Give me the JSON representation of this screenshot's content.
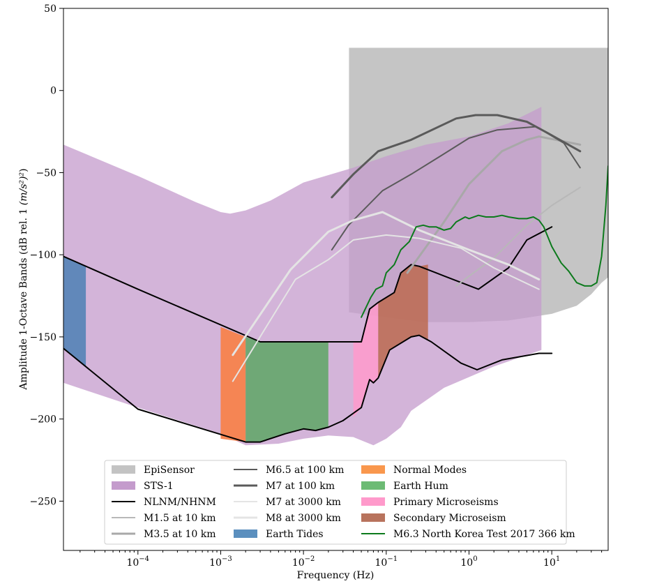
{
  "chart_data": {
    "type": "line",
    "xlabel": "Frequency (Hz)",
    "ylabel_prefix": "Amplitude 1-Octave Bands (dB rel. 1 ",
    "ylabel_unit": "(m/s²)²",
    "ylabel_suffix": ")",
    "xscale": "log",
    "xlim": [
      1.26e-05,
      48
    ],
    "ylim": [
      -280,
      50
    ],
    "x_tick_labels": [
      {
        "value": 0.0001,
        "base": "10",
        "exp": "−4"
      },
      {
        "value": 0.001,
        "base": "10",
        "exp": "−3"
      },
      {
        "value": 0.01,
        "base": "10",
        "exp": "−2"
      },
      {
        "value": 0.1,
        "base": "10",
        "exp": "−1"
      },
      {
        "value": 1,
        "base": "10",
        "exp": "0"
      },
      {
        "value": 10,
        "base": "10",
        "exp": "1"
      }
    ],
    "y_ticks": [
      50,
      0,
      -50,
      -100,
      -150,
      -200,
      -250
    ],
    "y_tick_labels": [
      "50",
      "0",
      "−50",
      "−100",
      "−150",
      "−200",
      "−250"
    ],
    "legend_position": "lower-center",
    "bands": [
      {
        "name": "Earth Tides",
        "color": "#5b86b8",
        "opacity": 0.95,
        "x0": 1.26e-05,
        "x1": 2.35e-05,
        "ybottom": [
          [
            1.26e-05,
            -157
          ],
          [
            2.35e-05,
            -168
          ]
        ],
        "ytop": [
          [
            1.26e-05,
            -101
          ],
          [
            2.35e-05,
            -107
          ]
        ]
      },
      {
        "name": "Normal Modes",
        "color": "#f7834d",
        "opacity": 0.95,
        "x0": 0.001,
        "x1": 0.002,
        "ybottom": [
          [
            0.001,
            -212
          ],
          [
            0.002,
            -214
          ]
        ],
        "ytop": [
          [
            0.001,
            -144
          ],
          [
            0.002,
            -150
          ]
        ]
      },
      {
        "name": "Earth Hum",
        "color": "#56a55c",
        "opacity": 0.8,
        "x0": 0.002,
        "x1": 0.02,
        "ybottom": [
          [
            0.002,
            -214
          ],
          [
            0.003,
            -214
          ],
          [
            0.006,
            -209
          ],
          [
            0.01,
            -206
          ],
          [
            0.014,
            -207
          ],
          [
            0.02,
            -205
          ]
        ],
        "ytop": [
          [
            0.002,
            -150
          ],
          [
            0.003,
            -153
          ],
          [
            0.02,
            -153
          ]
        ]
      },
      {
        "name": "Primary Microseisms",
        "color": "#ff9acb",
        "opacity": 0.85,
        "x0": 0.04,
        "x1": 0.08,
        "ybottom": [
          [
            0.04,
            -199
          ],
          [
            0.05,
            -193
          ],
          [
            0.063,
            -176
          ],
          [
            0.07,
            -178
          ],
          [
            0.08,
            -175
          ]
        ],
        "ytop": [
          [
            0.04,
            -153
          ],
          [
            0.05,
            -153
          ],
          [
            0.063,
            -133
          ],
          [
            0.08,
            -129
          ]
        ]
      },
      {
        "name": "Secondary Microseism",
        "color": "#bc6e57",
        "opacity": 0.9,
        "x0": 0.08,
        "x1": 0.32,
        "ybottom": [
          [
            0.08,
            -175
          ],
          [
            0.11,
            -158
          ],
          [
            0.2,
            -150
          ],
          [
            0.25,
            -149
          ],
          [
            0.32,
            -152
          ]
        ],
        "ytop": [
          [
            0.08,
            -129
          ],
          [
            0.125,
            -123
          ],
          [
            0.15,
            -111
          ],
          [
            0.2,
            -106
          ],
          [
            0.25,
            -107
          ],
          [
            0.32,
            -106
          ]
        ]
      }
    ],
    "series": [
      {
        "name": "EpiSensor",
        "kind": "fill",
        "color": "#bfbfbf",
        "opacity": 0.9,
        "top": [
          [
            0.0355,
            26
          ],
          [
            50,
            26
          ]
        ],
        "bottom": [
          [
            0.0355,
            -135
          ],
          [
            0.1,
            -138
          ],
          [
            0.3,
            -141
          ],
          [
            1,
            -141
          ],
          [
            3,
            -140
          ],
          [
            10,
            -136
          ],
          [
            20,
            -131
          ],
          [
            30,
            -124
          ],
          [
            40,
            -117
          ],
          [
            50,
            -113
          ]
        ]
      },
      {
        "name": "STS-1",
        "kind": "fill",
        "color": "#c49bcc",
        "opacity": 0.75,
        "top": [
          [
            1.26e-05,
            -33
          ],
          [
            0.0001,
            -52
          ],
          [
            0.0005,
            -68
          ],
          [
            0.001,
            -74
          ],
          [
            0.0013,
            -75
          ],
          [
            0.002,
            -73
          ],
          [
            0.004,
            -67
          ],
          [
            0.01,
            -56
          ],
          [
            0.04,
            -47
          ],
          [
            0.1,
            -40
          ],
          [
            0.3,
            -33
          ],
          [
            1,
            -28
          ],
          [
            3,
            -20
          ],
          [
            7.5,
            -10
          ]
        ],
        "bottom": [
          [
            7.5,
            -158
          ],
          [
            2,
            -168
          ],
          [
            0.5,
            -181
          ],
          [
            0.2,
            -195
          ],
          [
            0.15,
            -205
          ],
          [
            0.1,
            -212
          ],
          [
            0.07,
            -216
          ],
          [
            0.04,
            -211
          ],
          [
            0.02,
            -210
          ],
          [
            0.01,
            -212
          ],
          [
            0.005,
            -215
          ],
          [
            0.002,
            -216
          ],
          [
            0.001,
            -209
          ],
          [
            0.0001,
            -193
          ],
          [
            1.26e-05,
            -178
          ]
        ]
      },
      {
        "name": "NLNM/NHNM",
        "kind": "line",
        "color": "#000000",
        "width": 2,
        "lines": [
          [
            [
              1.26e-05,
              -101
            ],
            [
              0.0001,
              -121
            ],
            [
              0.003,
              -153
            ],
            [
              0.04,
              -153
            ],
            [
              0.05,
              -153
            ],
            [
              0.063,
              -133
            ],
            [
              0.08,
              -129
            ],
            [
              0.125,
              -123
            ],
            [
              0.15,
              -111
            ],
            [
              0.2,
              -106
            ],
            [
              0.25,
              -107
            ],
            [
              0.4,
              -111
            ],
            [
              1.3,
              -121
            ],
            [
              3,
              -108
            ],
            [
              5,
              -91
            ],
            [
              10,
              -83
            ]
          ],
          [
            [
              1.26e-05,
              -157
            ],
            [
              0.0001,
              -194
            ],
            [
              0.002,
              -214
            ],
            [
              0.003,
              -214
            ],
            [
              0.006,
              -209
            ],
            [
              0.01,
              -206
            ],
            [
              0.014,
              -207
            ],
            [
              0.02,
              -205
            ],
            [
              0.03,
              -201
            ],
            [
              0.05,
              -193
            ],
            [
              0.063,
              -176
            ],
            [
              0.07,
              -178
            ],
            [
              0.08,
              -175
            ],
            [
              0.11,
              -158
            ],
            [
              0.2,
              -150
            ],
            [
              0.25,
              -149
            ],
            [
              0.35,
              -153
            ],
            [
              0.8,
              -166
            ],
            [
              1.25,
              -170
            ],
            [
              2.5,
              -164
            ],
            [
              7,
              -160
            ],
            [
              10,
              -160
            ]
          ]
        ]
      },
      {
        "name": "M1.5 at 10 km",
        "kind": "line",
        "color": "#b8b8b8",
        "width": 2,
        "lines": [
          [
            [
              0.7,
              -119
            ],
            [
              1,
              -113
            ],
            [
              2,
              -102
            ],
            [
              5,
              -82
            ],
            [
              10,
              -70
            ],
            [
              22,
              -59
            ]
          ]
        ]
      },
      {
        "name": "M3.5 at 10 km",
        "kind": "line",
        "color": "#a8a8a8",
        "width": 3,
        "lines": [
          [
            [
              0.18,
              -111
            ],
            [
              0.5,
              -80
            ],
            [
              1,
              -57
            ],
            [
              2.5,
              -37
            ],
            [
              5,
              -30
            ],
            [
              7,
              -28
            ],
            [
              14,
              -31
            ],
            [
              22,
              -33
            ]
          ]
        ]
      },
      {
        "name": "M6.5 at 100 km",
        "kind": "line",
        "color": "#5a5a5a",
        "width": 2,
        "lines": [
          [
            [
              0.022,
              -97
            ],
            [
              0.035,
              -82
            ],
            [
              0.09,
              -61
            ],
            [
              0.2,
              -51
            ],
            [
              0.45,
              -40
            ],
            [
              1,
              -29
            ],
            [
              2.2,
              -24
            ],
            [
              6.5,
              -22
            ],
            [
              14,
              -32
            ],
            [
              22,
              -47
            ]
          ]
        ]
      },
      {
        "name": "M7 at 100 km",
        "kind": "line",
        "color": "#5a5a5a",
        "width": 3,
        "lines": [
          [
            [
              0.022,
              -65
            ],
            [
              0.04,
              -51
            ],
            [
              0.08,
              -37
            ],
            [
              0.2,
              -30
            ],
            [
              0.7,
              -17
            ],
            [
              1.2,
              -15
            ],
            [
              2.2,
              -15
            ],
            [
              5,
              -19
            ],
            [
              9,
              -26
            ],
            [
              22,
              -37
            ]
          ]
        ]
      },
      {
        "name": "M7 at 3000 km",
        "kind": "line",
        "color": "#e4e4e4",
        "width": 2,
        "lines": [
          [
            [
              0.0014,
              -177
            ],
            [
              0.008,
              -115
            ],
            [
              0.02,
              -103
            ],
            [
              0.04,
              -91
            ],
            [
              0.1,
              -88
            ],
            [
              0.25,
              -90
            ],
            [
              0.8,
              -96
            ],
            [
              2,
              -108
            ],
            [
              7,
              -121
            ]
          ]
        ]
      },
      {
        "name": "M8 at 3000 km",
        "kind": "line",
        "color": "#e4e4e4",
        "width": 3,
        "lines": [
          [
            [
              0.0014,
              -161
            ],
            [
              0.007,
              -109
            ],
            [
              0.02,
              -86
            ],
            [
              0.04,
              -79
            ],
            [
              0.09,
              -74
            ],
            [
              0.25,
              -85
            ],
            [
              1,
              -97
            ],
            [
              3,
              -106
            ],
            [
              7,
              -115
            ]
          ]
        ]
      },
      {
        "name": "M6.3 North Korea Test 2017 366 km",
        "kind": "line",
        "color": "#0c7a1c",
        "width": 2,
        "lines": [
          [
            [
              0.05,
              -138
            ],
            [
              0.065,
              -126
            ],
            [
              0.075,
              -121
            ],
            [
              0.09,
              -119
            ],
            [
              0.1,
              -111
            ],
            [
              0.125,
              -106
            ],
            [
              0.15,
              -97
            ],
            [
              0.19,
              -92
            ],
            [
              0.23,
              -83
            ],
            [
              0.28,
              -82
            ],
            [
              0.33,
              -83
            ],
            [
              0.4,
              -83
            ],
            [
              0.5,
              -85
            ],
            [
              0.6,
              -84
            ],
            [
              0.7,
              -80
            ],
            [
              0.9,
              -77
            ],
            [
              1,
              -78
            ],
            [
              1.3,
              -76
            ],
            [
              1.6,
              -77
            ],
            [
              2,
              -77
            ],
            [
              2.5,
              -76
            ],
            [
              3,
              -77
            ],
            [
              4,
              -78
            ],
            [
              5,
              -78
            ],
            [
              6,
              -77
            ],
            [
              7,
              -79
            ],
            [
              8,
              -83
            ],
            [
              10,
              -95
            ],
            [
              13,
              -105
            ],
            [
              16,
              -110
            ],
            [
              20,
              -117
            ],
            [
              25,
              -119
            ],
            [
              30,
              -119
            ],
            [
              35,
              -117
            ],
            [
              40,
              -101
            ],
            [
              45,
              -70
            ],
            [
              48,
              -46
            ]
          ]
        ]
      }
    ],
    "legend": [
      {
        "label": "EpiSensor",
        "kind": "patch",
        "color": "#c3c3c3"
      },
      {
        "label": "STS-1",
        "kind": "patch",
        "color": "#c49bcc"
      },
      {
        "label": "NLNM/NHNM",
        "kind": "line",
        "color": "#000000",
        "width": 2
      },
      {
        "label": "M1.5 at 10 km",
        "kind": "line",
        "color": "#b8b8b8",
        "width": 2
      },
      {
        "label": "M3.5 at 10 km",
        "kind": "line",
        "color": "#a8a8a8",
        "width": 3
      },
      {
        "label": "M6.5 at 100 km",
        "kind": "line",
        "color": "#5a5a5a",
        "width": 2
      },
      {
        "label": "M7 at 100 km",
        "kind": "line",
        "color": "#5a5a5a",
        "width": 3
      },
      {
        "label": "M7 at 3000 km",
        "kind": "line",
        "color": "#e4e4e4",
        "width": 2
      },
      {
        "label": "M8 at 3000 km",
        "kind": "line",
        "color": "#e4e4e4",
        "width": 3
      },
      {
        "label": "Earth Tides",
        "kind": "patch",
        "color": "#5b8fbe"
      },
      {
        "label": "Normal Modes",
        "kind": "patch",
        "color": "#f9974d"
      },
      {
        "label": "Earth Hum",
        "kind": "patch",
        "color": "#6cbb74"
      },
      {
        "label": "Primary Microseisms",
        "kind": "patch",
        "color": "#ff9acb"
      },
      {
        "label": "Secondary Microseism",
        "kind": "patch",
        "color": "#b8735d"
      },
      {
        "label": "M6.3 North Korea Test 2017 366 km",
        "kind": "line",
        "color": "#0c7a1c",
        "width": 2
      }
    ]
  }
}
